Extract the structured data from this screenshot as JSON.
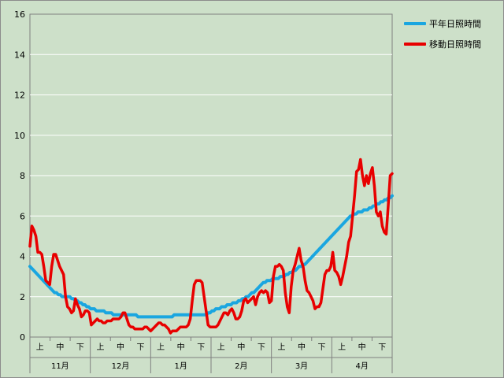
{
  "chart_data": {
    "type": "line",
    "title": "",
    "xlabel": "",
    "ylabel": "",
    "ylim": [
      0,
      16
    ],
    "yticks": [
      "0",
      "2",
      "4",
      "6",
      "8",
      "10",
      "12",
      "14",
      "16"
    ],
    "months": [
      "11月",
      "12月",
      "1月",
      "2月",
      "3月",
      "4月"
    ],
    "dekads": [
      "上",
      "中",
      "下"
    ],
    "grid": true,
    "legend_position": "right",
    "series": [
      {
        "name": "平年日照時間",
        "color": "#1aa6e0",
        "values": [
          3.5,
          3.4,
          3.3,
          3.2,
          3.1,
          3.0,
          2.9,
          2.8,
          2.7,
          2.6,
          2.5,
          2.4,
          2.3,
          2.2,
          2.2,
          2.1,
          2.1,
          2.0,
          2.0,
          2.0,
          2.0,
          2.0,
          1.9,
          1.9,
          1.8,
          1.8,
          1.7,
          1.7,
          1.6,
          1.6,
          1.5,
          1.5,
          1.4,
          1.4,
          1.4,
          1.3,
          1.3,
          1.3,
          1.3,
          1.3,
          1.2,
          1.2,
          1.2,
          1.2,
          1.1,
          1.1,
          1.1,
          1.1,
          1.1,
          1.1,
          1.1,
          1.1,
          1.1,
          1.1,
          1.1,
          1.1,
          1.1,
          1.0,
          1.0,
          1.0,
          1.0,
          1.0,
          1.0,
          1.0,
          1.0,
          1.0,
          1.0,
          1.0,
          1.0,
          1.0,
          1.0,
          1.0,
          1.0,
          1.0,
          1.0,
          1.0,
          1.1,
          1.1,
          1.1,
          1.1,
          1.1,
          1.1,
          1.1,
          1.1,
          1.1,
          1.1,
          1.1,
          1.1,
          1.1,
          1.1,
          1.1,
          1.1,
          1.1,
          1.1,
          1.2,
          1.2,
          1.3,
          1.3,
          1.4,
          1.4,
          1.4,
          1.5,
          1.5,
          1.5,
          1.6,
          1.6,
          1.6,
          1.7,
          1.7,
          1.7,
          1.8,
          1.8,
          1.9,
          1.9,
          2.0,
          2.0,
          2.1,
          2.2,
          2.2,
          2.3,
          2.4,
          2.5,
          2.6,
          2.7,
          2.7,
          2.8,
          2.8,
          2.8,
          2.9,
          2.9,
          2.9,
          2.9,
          3.0,
          3.0,
          3.0,
          3.1,
          3.1,
          3.2,
          3.2,
          3.3,
          3.3,
          3.4,
          3.5,
          3.5,
          3.6,
          3.6,
          3.7,
          3.8,
          3.9,
          4.0,
          4.1,
          4.2,
          4.3,
          4.4,
          4.5,
          4.6,
          4.7,
          4.8,
          4.9,
          5.0,
          5.1,
          5.2,
          5.3,
          5.4,
          5.5,
          5.6,
          5.7,
          5.8,
          5.9,
          6.0,
          6.0,
          6.1,
          6.1,
          6.2,
          6.2,
          6.2,
          6.3,
          6.3,
          6.3,
          6.4,
          6.4,
          6.5,
          6.5,
          6.6,
          6.6,
          6.7,
          6.7,
          6.8,
          6.8,
          6.9,
          6.9,
          7.0
        ]
      },
      {
        "name": "移動日照時間",
        "color": "#e80000",
        "values": [
          4.5,
          5.5,
          5.3,
          5.0,
          4.2,
          4.2,
          4.1,
          3.5,
          2.8,
          2.7,
          2.6,
          3.5,
          4.1,
          4.1,
          3.8,
          3.5,
          3.3,
          3.1,
          2.0,
          1.5,
          1.4,
          1.2,
          1.3,
          1.9,
          1.6,
          1.4,
          1.0,
          1.1,
          1.3,
          1.3,
          1.2,
          0.6,
          0.7,
          0.8,
          0.9,
          0.8,
          0.8,
          0.7,
          0.7,
          0.8,
          0.8,
          0.8,
          0.9,
          0.9,
          0.9,
          0.9,
          1.0,
          1.2,
          1.2,
          0.9,
          0.6,
          0.5,
          0.5,
          0.4,
          0.4,
          0.4,
          0.4,
          0.4,
          0.5,
          0.5,
          0.4,
          0.3,
          0.4,
          0.5,
          0.6,
          0.7,
          0.7,
          0.6,
          0.6,
          0.5,
          0.4,
          0.2,
          0.3,
          0.3,
          0.3,
          0.4,
          0.5,
          0.5,
          0.5,
          0.5,
          0.6,
          0.9,
          1.8,
          2.6,
          2.8,
          2.8,
          2.8,
          2.7,
          2.0,
          1.3,
          0.6,
          0.5,
          0.5,
          0.5,
          0.5,
          0.6,
          0.8,
          1.0,
          1.2,
          1.2,
          1.1,
          1.3,
          1.4,
          1.2,
          0.9,
          0.9,
          1.0,
          1.3,
          1.8,
          1.9,
          1.7,
          1.8,
          1.9,
          2.0,
          1.6,
          2.0,
          2.2,
          2.3,
          2.2,
          2.3,
          2.2,
          1.7,
          1.8,
          3.0,
          3.5,
          3.5,
          3.6,
          3.5,
          3.3,
          2.2,
          1.5,
          1.2,
          2.5,
          3.3,
          3.6,
          4.0,
          4.4,
          3.8,
          3.5,
          2.8,
          2.3,
          2.2,
          2.0,
          1.8,
          1.4,
          1.5,
          1.5,
          1.7,
          2.4,
          3.1,
          3.3,
          3.3,
          3.5,
          4.2,
          3.3,
          3.2,
          3.0,
          2.6,
          3.0,
          3.5,
          4.0,
          4.7,
          5.0,
          6.0,
          7.0,
          8.2,
          8.3,
          8.8,
          8.0,
          7.5,
          8.0,
          7.6,
          8.1,
          8.4,
          7.5,
          6.2,
          6.0,
          6.2,
          5.5,
          5.2,
          5.1,
          6.5,
          8.0,
          8.1
        ]
      }
    ]
  }
}
